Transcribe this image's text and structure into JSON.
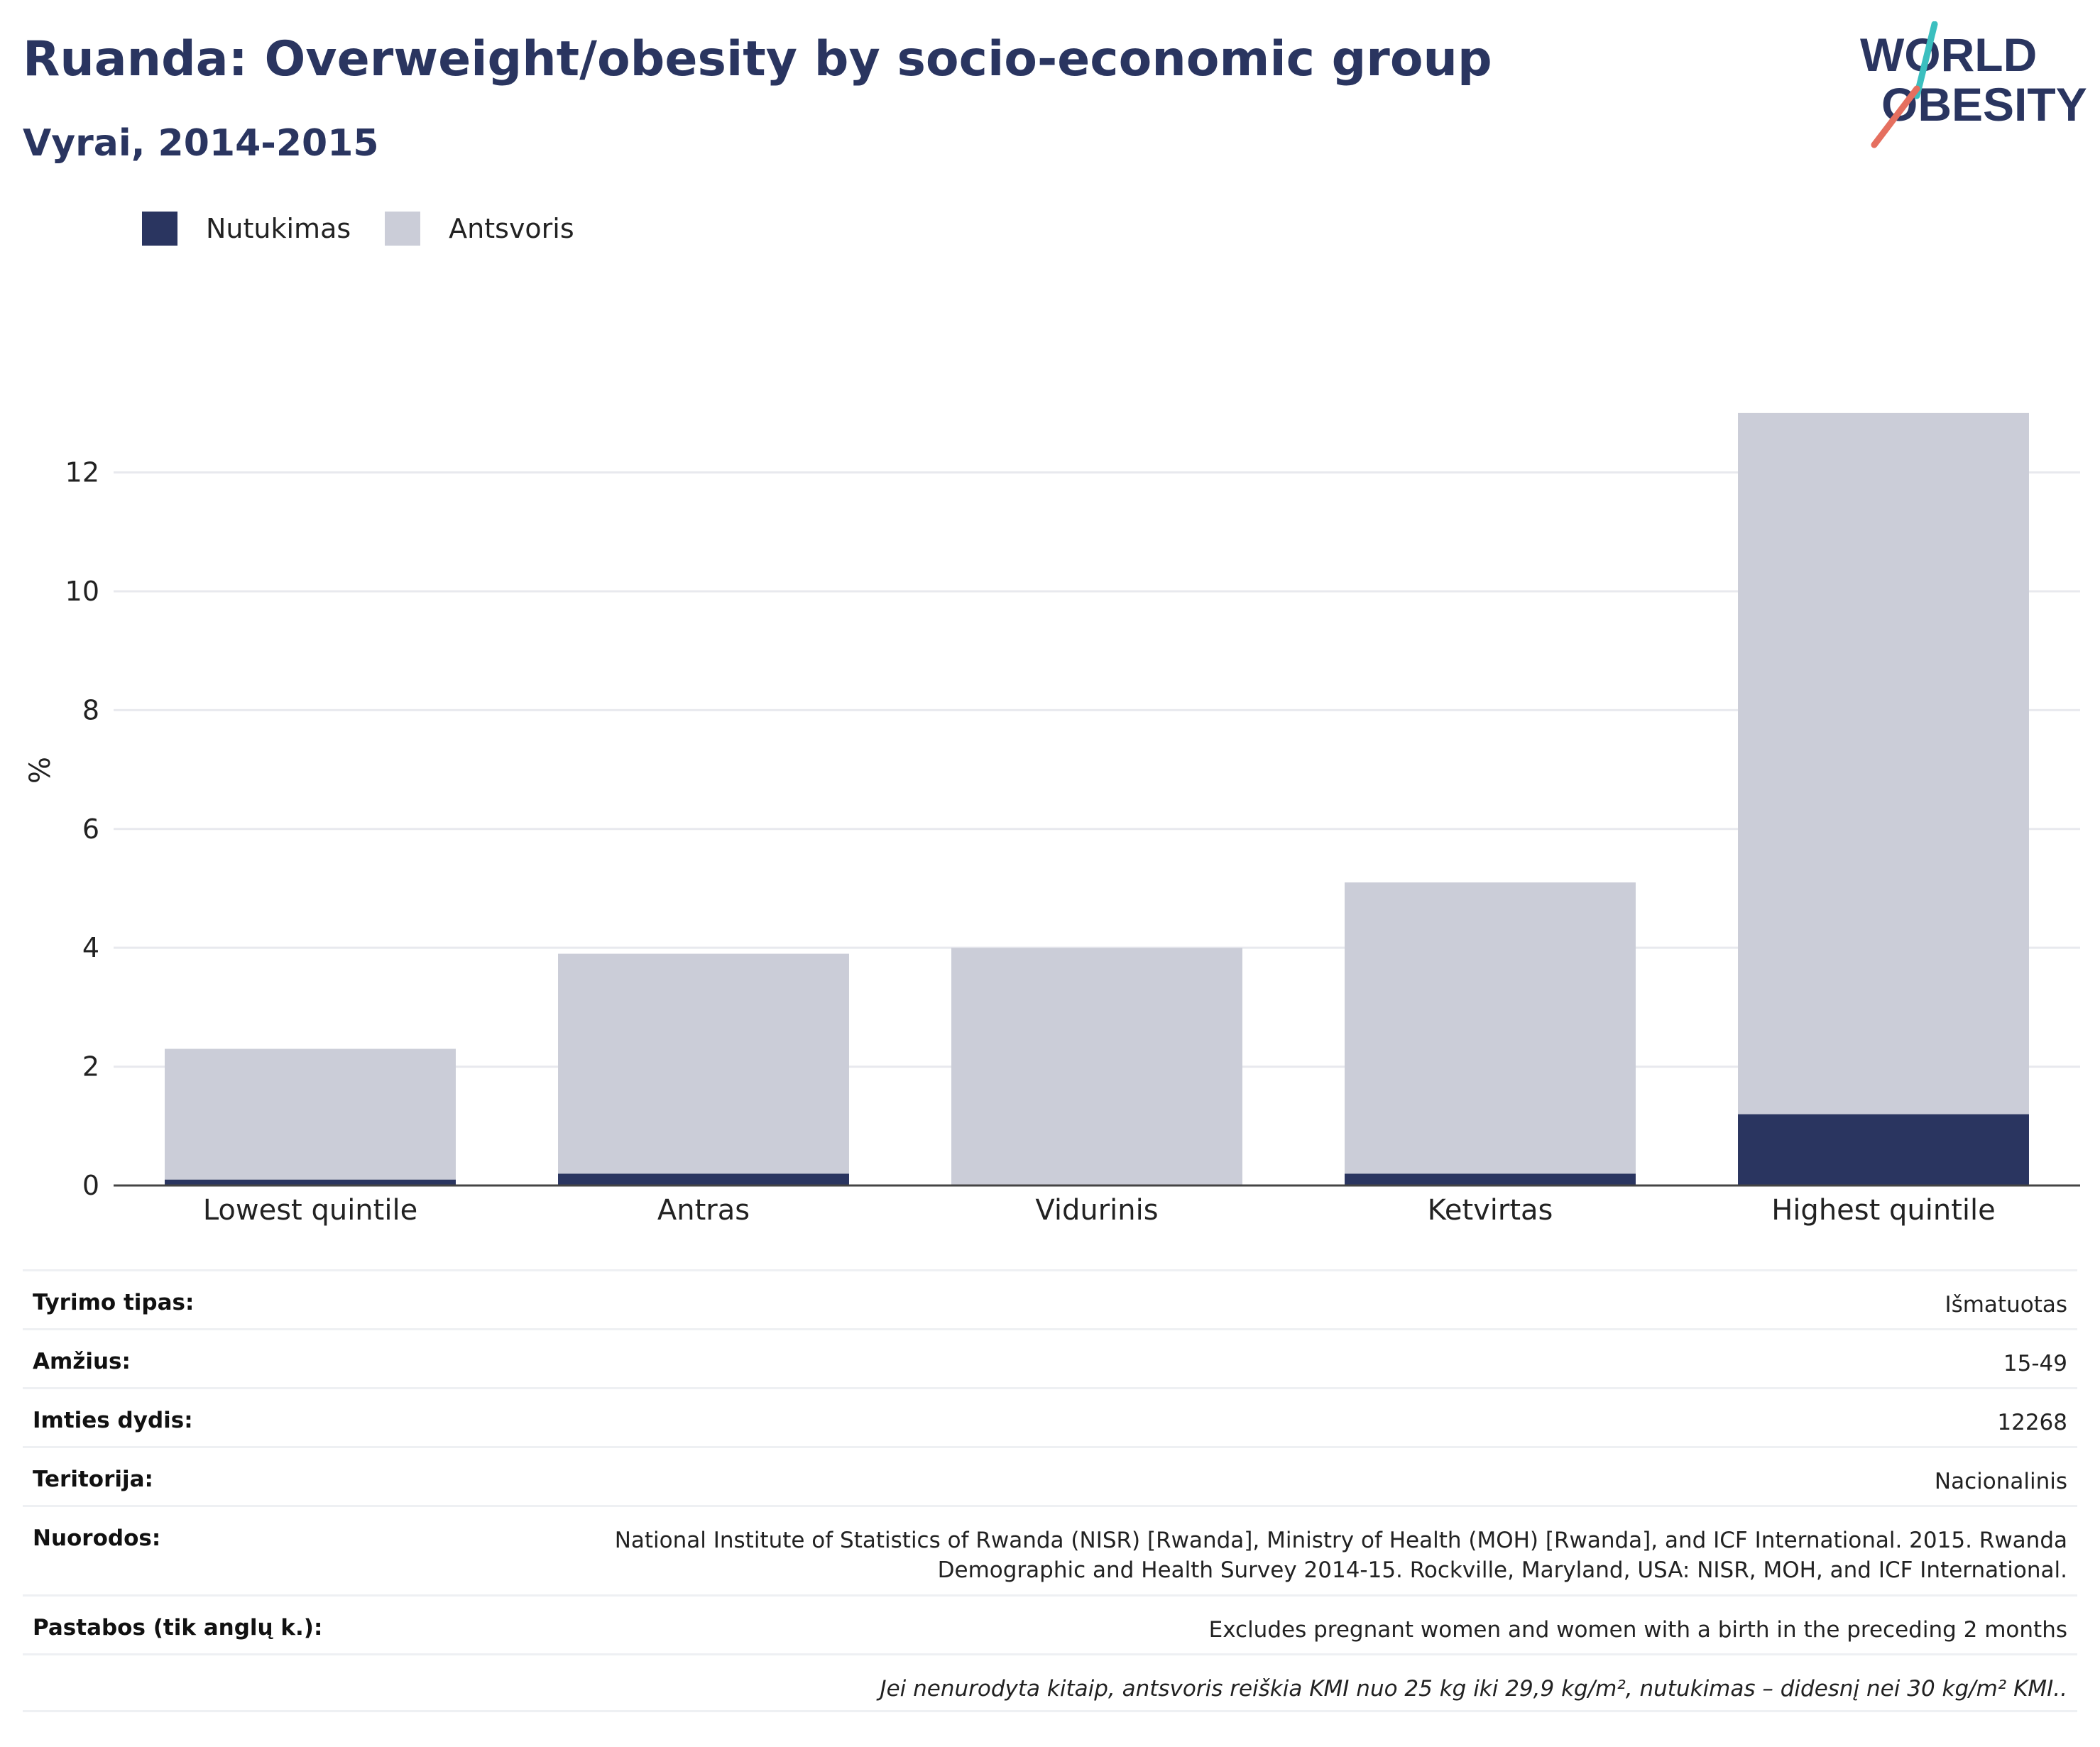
{
  "header": {
    "title": "Ruanda: Overweight/obesity by socio-economic group",
    "subtitle": "Vyrai, 2014-2015",
    "logo_text_1": "WORLD",
    "logo_text_2": "OBESITY"
  },
  "legend": {
    "items": [
      {
        "label": "Nutukimas",
        "color": "#2a3560"
      },
      {
        "label": "Antsvoris",
        "color": "#cbcdd8"
      }
    ]
  },
  "chart_data": {
    "type": "bar",
    "stacked": true,
    "categories": [
      "Lowest quintile",
      "Antras",
      "Vidurinis",
      "Ketvirtas",
      "Highest quintile"
    ],
    "series": [
      {
        "name": "Nutukimas",
        "color": "#2a3560",
        "values": [
          0.1,
          0.2,
          0.0,
          0.2,
          1.2
        ]
      },
      {
        "name": "Antsvoris",
        "color": "#cbcdd8",
        "values": [
          2.2,
          3.7,
          4.0,
          4.9,
          11.8
        ]
      }
    ],
    "title": "Ruanda: Overweight/obesity by socio-economic group",
    "subtitle": "Vyrai, 2014-2015",
    "xlabel": "",
    "ylabel": "%",
    "ylim": [
      0,
      13.5
    ],
    "yticks": [
      0,
      2,
      4,
      6,
      8,
      10,
      12
    ],
    "grid": true,
    "legend_position": "top-left"
  },
  "info": {
    "rows": [
      {
        "label": "Tyrimo tipas:",
        "value": "Išmatuotas"
      },
      {
        "label": "Amžius:",
        "value": "15-49"
      },
      {
        "label": "Imties dydis:",
        "value": "12268"
      },
      {
        "label": "Teritorija:",
        "value": "Nacionalinis"
      },
      {
        "label": "Nuorodos:",
        "value_line1": "National Institute of Statistics of Rwanda (NISR) [Rwanda], Ministry of Health (MOH) [Rwanda], and ICF International. 2015. Rwanda",
        "value_line2": "Demographic and Health Survey 2014-15. Rockville, Maryland, USA: NISR, MOH, and ICF International."
      },
      {
        "label": "Pastabos (tik anglų k.):",
        "value": "Excludes pregnant women and women with a birth in the preceding 2 months"
      }
    ],
    "footnote": "Jei nenurodyta kitaip, antsvoris reiškia KMI nuo 25 kg iki 29,9 kg/m², nutukimas – didesnį nei 30 kg/m² KMI.."
  }
}
